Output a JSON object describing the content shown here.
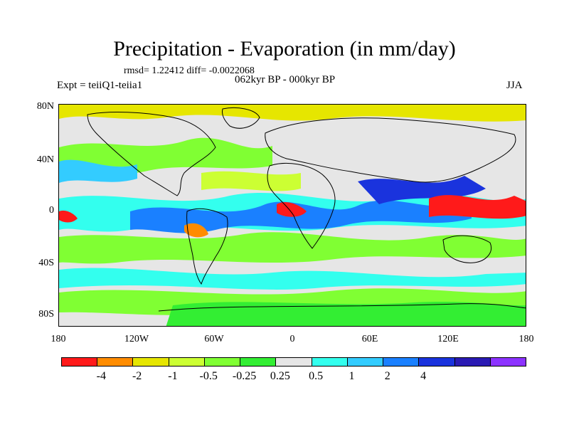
{
  "title": "Precipitation - Evaporation (in mm/day)",
  "stats": "rmsd= 1.22412 diff= -0.0022068",
  "subtitle": "062kyr BP - 000kyr BP",
  "expt": "Expt = teiiQ1-teiia1",
  "season": "JJA",
  "lat_ticks": [
    "80N",
    "40N",
    "0",
    "40S",
    "80S"
  ],
  "lon_ticks": [
    "180",
    "120W",
    "60W",
    "0",
    "60E",
    "120E",
    "180"
  ],
  "colorbar": {
    "colors": [
      "#ff1a1a",
      "#ff8c00",
      "#e6e600",
      "#ccff33",
      "#80ff33",
      "#33ee33",
      "#e6e6e6",
      "#33ffee",
      "#33ccff",
      "#1a80ff",
      "#1a33dd",
      "#2a1ab3",
      "#8c33ff"
    ],
    "labels": [
      "-4",
      "-2",
      "-1",
      "-0.5",
      "-0.25",
      "0.25",
      "0.5",
      "1",
      "2",
      "4"
    ]
  },
  "chart_data": {
    "type": "heatmap",
    "title": "Precipitation - Evaporation (in mm/day)",
    "subtitle": "062kyr BP - 000kyr BP",
    "variable": "P-E difference (mm/day)",
    "xlim": [
      -180,
      180
    ],
    "ylim": [
      -90,
      90
    ],
    "contour_levels": [
      -4,
      -2,
      -1,
      -0.5,
      -0.25,
      0.25,
      0.5,
      1,
      2,
      4
    ],
    "legend": "bottom colorbar"
  }
}
